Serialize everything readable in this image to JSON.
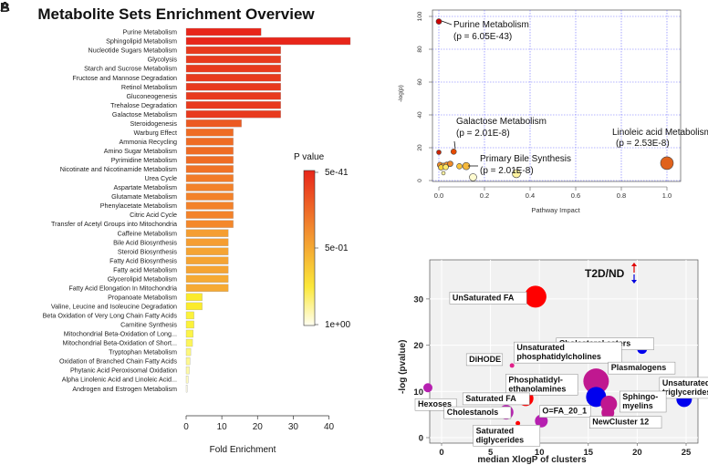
{
  "panel_letters": [
    "A",
    "B"
  ],
  "chart_data": [
    {
      "type": "bar",
      "title": "Metabolite Sets Enrichment Overview",
      "xlabel": "Fold Enrichment",
      "xlim": [
        0,
        47
      ],
      "xticks": [
        0,
        10,
        20,
        30,
        40
      ],
      "categories": [
        "Purine Metabolism",
        "Sphingolipid Metabolism",
        "Nucleotide Sugars Metabolism",
        "Glycolysis",
        "Starch and Sucrose Metabolism",
        "Fructose and Mannose Degradation",
        "Retinol Metabolism",
        "Gluconeogenesis",
        "Trehalose Degradation",
        "Galactose Metabolism",
        "Steroidogenesis",
        "Warburg Effect",
        "Ammonia Recycling",
        "Amino Sugar Metabolism",
        "Pyrimidine Metabolism",
        "Nicotinate and Nicotinamide Metabolism",
        "Urea Cycle",
        "Aspartate Metabolism",
        "Glutamate Metabolism",
        "Phenylacetate Metabolism",
        "Citric Acid Cycle",
        "Transfer of Acetyl Groups into Mitochondria",
        "Caffeine Metabolism",
        "Bile Acid Biosynthesis",
        "Steroid Biosynthesis",
        "Fatty Acid Biosynthesis",
        "Fatty acid Metabolism",
        "Glycerolipid Metabolism",
        "Fatty Acid Elongation In Mitochondria",
        "Propanoate Metabolism",
        "Valine, Leucine and Isoleucine Degradation",
        "Beta Oxidation of Very Long Chain Fatty Acids",
        "Carnitine Synthesis",
        "Mitochondrial Beta-Oxidation of Long...",
        "Mitochondrial Beta-Oxidation of Short...",
        "Tryptophan Metabolism",
        "Oxidation of Branched Chain Fatty Acids",
        "Phytanic Acid Peroxisomal Oxidation",
        "Alpha Linolenic Acid and Linoleic Acid...",
        "Androgen and Estrogen Metabolism"
      ],
      "values": [
        21,
        46,
        26.5,
        26.5,
        26.5,
        26.5,
        26.5,
        26.5,
        26.5,
        26.5,
        15.5,
        13.2,
        13.2,
        13.2,
        13.2,
        13.2,
        13.2,
        13.2,
        13.2,
        13.2,
        13.2,
        13.2,
        11.8,
        11.8,
        11.8,
        11.8,
        11.8,
        11.8,
        11.8,
        4.5,
        4.5,
        2.2,
        2.2,
        2.0,
        1.8,
        1.3,
        1.1,
        0.9,
        0.6,
        0.3
      ],
      "bar_colors": [
        "#e8261a",
        "#e8261a",
        "#e83a1e",
        "#e83a1e",
        "#e83a1e",
        "#e83a1e",
        "#e83a1e",
        "#e83a1e",
        "#e83a1e",
        "#e83a1e",
        "#ec5a22",
        "#ef6c24",
        "#ef6c24",
        "#ef6c24",
        "#ef6c24",
        "#f07226",
        "#f27b28",
        "#f3822a",
        "#f3822a",
        "#f3822a",
        "#f3822a",
        "#f4882b",
        "#f59e32",
        "#f59e32",
        "#f5a433",
        "#f5a433",
        "#f5a433",
        "#f6aa34",
        "#f6aa34",
        "#fbeb2c",
        "#fbeb2c",
        "#fcf23a",
        "#fcf23a",
        "#fcf448",
        "#fcf55a",
        "#fdf87c",
        "#fdf890",
        "#fdf9a6",
        "#fefbc0",
        "#fffde6"
      ],
      "legend": {
        "title": "P value",
        "labels": [
          "5e-41",
          "5e-01",
          "1e+00"
        ]
      }
    },
    {
      "type": "scatter",
      "xlabel": "Pathway Impact",
      "ylabel": "-log(p)",
      "xlim": [
        0,
        1
      ],
      "ylim": [
        0,
        100
      ],
      "xticks": [
        "0.0",
        "0.2",
        "0.4",
        "0.6",
        "0.8",
        "1.0"
      ],
      "yticks": [
        "0",
        "20",
        "40",
        "60",
        "80",
        "100"
      ],
      "points": [
        {
          "x": 0.0,
          "y": 96.9,
          "color": "#cc0000",
          "r": 3
        },
        {
          "x": 0.065,
          "y": 17.6,
          "color": "#e64a00",
          "r": 3
        },
        {
          "x": 1.0,
          "y": 10.6,
          "color": "#e0621c",
          "r": 7
        },
        {
          "x": 0.0,
          "y": 17.2,
          "color": "#cc2200",
          "r": 2.5
        },
        {
          "x": 0.005,
          "y": 9.5,
          "color": "#f08a2a",
          "r": 3
        },
        {
          "x": 0.02,
          "y": 9.0,
          "color": "#f5a333",
          "r": 3
        },
        {
          "x": 0.035,
          "y": 9.6,
          "color": "#f08a2a",
          "r": 3
        },
        {
          "x": 0.05,
          "y": 10.2,
          "color": "#f08a2a",
          "r": 3
        },
        {
          "x": 0.01,
          "y": 8.0,
          "color": "#fbd33a",
          "r": 3
        },
        {
          "x": 0.03,
          "y": 8.2,
          "color": "#fde96a",
          "r": 3
        },
        {
          "x": 0.12,
          "y": 8.8,
          "color": "#f5b83a",
          "r": 4
        },
        {
          "x": 0.09,
          "y": 8.7,
          "color": "#f8c43a",
          "r": 3
        },
        {
          "x": 0.15,
          "y": 2.0,
          "color": "#fffbd0",
          "r": 4
        },
        {
          "x": 0.34,
          "y": 4.2,
          "color": "#fef3a0",
          "r": 4.5
        },
        {
          "x": 0.02,
          "y": 4.5,
          "color": "#fef3a0",
          "r": 2
        }
      ],
      "annotations": [
        {
          "label": "Purine Metabolism",
          "sub": "(p = 6.05E-43)"
        },
        {
          "label": "Galactose Metabolism",
          "sub": "(p = 2.01E-8)"
        },
        {
          "label": "Primary Bile Synthesis",
          "sub": "(p = 2.01E-8)"
        },
        {
          "label": "Linoleic acid Metabolism",
          "sub": "(p = 2.53E-8)"
        }
      ]
    },
    {
      "type": "scatter",
      "xlabel": "median XlogP of clusters",
      "ylabel": "-log (pvalue)",
      "xlim": [
        -3,
        26
      ],
      "ylim": [
        -1,
        37
      ],
      "xticks": [
        "0",
        "5",
        "10",
        "15",
        "20",
        "25"
      ],
      "yticks": [
        "0",
        "10",
        "20",
        "30"
      ],
      "legend_text": "T2D/ND",
      "bubbles": [
        {
          "label": "UnSaturated FA",
          "x": 9.6,
          "y": 30.5,
          "r": 12,
          "color": "#ff0000"
        },
        {
          "label": "Cholesterol esters",
          "x": 20.5,
          "y": 19.2,
          "r": 5.5,
          "color": "#0000ee"
        },
        {
          "label": "DiHODE",
          "x": 7.2,
          "y": 15.6,
          "r": 2.5,
          "color": "#e0218a"
        },
        {
          "label": "Unsaturated phosphatidylcholines",
          "x": 15.8,
          "y": 12.2,
          "r": 14,
          "color": "#c01890"
        },
        {
          "label": "Plasmalogens",
          "x": 16.3,
          "y": 12.0,
          "r": 3,
          "color": "#c01890"
        },
        {
          "label": "Hexoses",
          "x": -1.4,
          "y": 10.8,
          "r": 5,
          "color": "#b620b0"
        },
        {
          "label": "Unsaturated triglycerides",
          "x": 24.8,
          "y": 8.3,
          "r": 8.5,
          "color": "#0000ee"
        },
        {
          "label": "Phosphatidyl-ethanolamines",
          "x": 15.8,
          "y": 8.8,
          "r": 11,
          "color": "#0000ee"
        },
        {
          "label": "Sphingo-myelins",
          "x": 17.1,
          "y": 7.3,
          "r": 9,
          "color": "#c01890"
        },
        {
          "label": "Saturated FA",
          "x": 8.6,
          "y": 8.5,
          "r": 8.5,
          "color": "#ff0000"
        },
        {
          "label": "Cholestanols",
          "x": 6.6,
          "y": 5.5,
          "r": 8,
          "color": "#b620b0"
        },
        {
          "label": "O=FA_20_1",
          "x": 10.2,
          "y": 3.6,
          "r": 7,
          "color": "#b620b0"
        },
        {
          "label": "NewCluster 12",
          "x": 17.0,
          "y": 5.4,
          "r": 7,
          "color": "#c01890"
        },
        {
          "label": "Saturated diglycerides",
          "x": 7.8,
          "y": 3.1,
          "r": 2.5,
          "color": "#ff0000"
        }
      ]
    }
  ]
}
